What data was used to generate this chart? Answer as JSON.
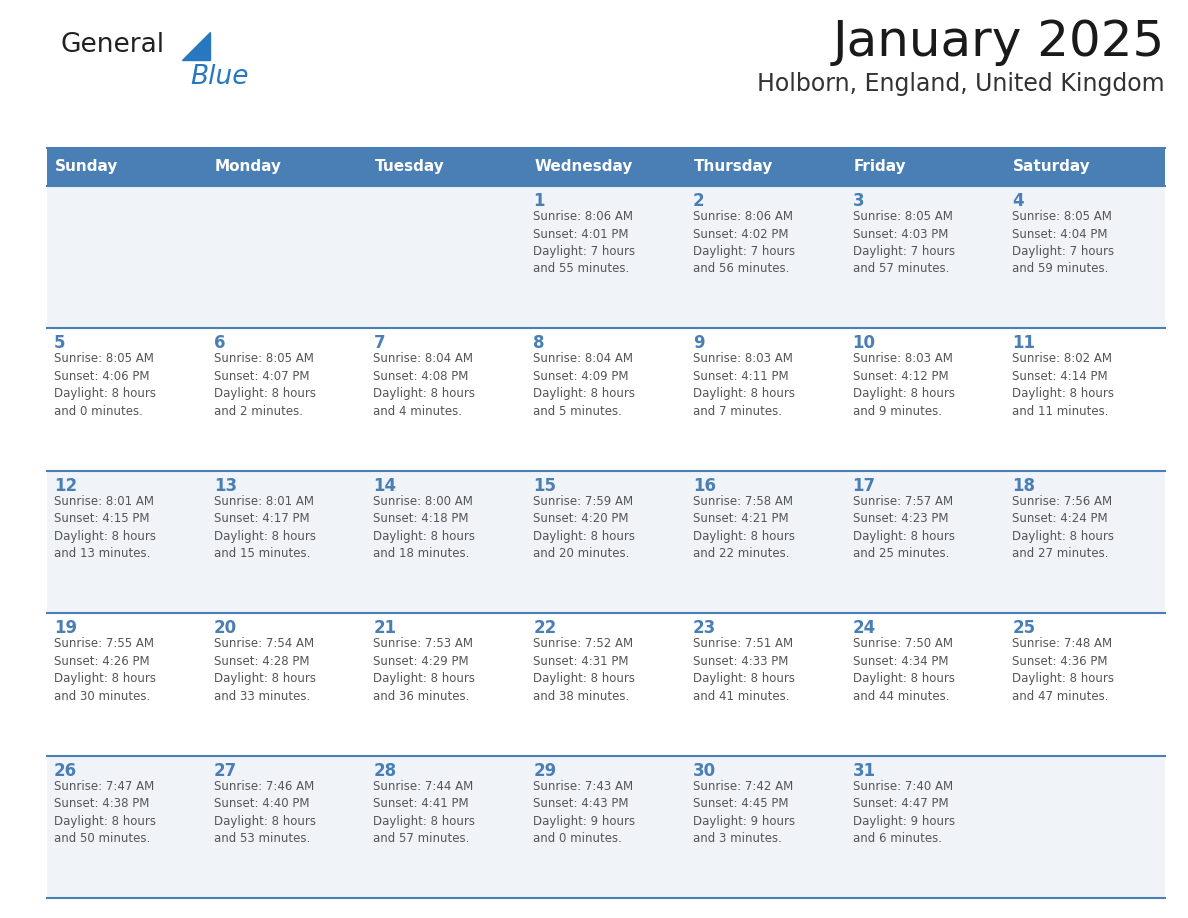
{
  "title": "January 2025",
  "subtitle": "Holborn, England, United Kingdom",
  "header_color": "#4a7fb5",
  "header_text_color": "#ffffff",
  "cell_bg_light": "#f0f4f8",
  "cell_bg_white": "#ffffff",
  "day_headers": [
    "Sunday",
    "Monday",
    "Tuesday",
    "Wednesday",
    "Thursday",
    "Friday",
    "Saturday"
  ],
  "grid_line_color": "#4a7fb5",
  "day_number_color": "#4a7fb5",
  "cell_text_color": "#555555",
  "logo_general_color": "#222222",
  "logo_blue_color": "#2878c0",
  "logo_triangle_color": "#2878c0",
  "weeks": [
    [
      {
        "day": null,
        "info": null
      },
      {
        "day": null,
        "info": null
      },
      {
        "day": null,
        "info": null
      },
      {
        "day": 1,
        "info": "Sunrise: 8:06 AM\nSunset: 4:01 PM\nDaylight: 7 hours\nand 55 minutes."
      },
      {
        "day": 2,
        "info": "Sunrise: 8:06 AM\nSunset: 4:02 PM\nDaylight: 7 hours\nand 56 minutes."
      },
      {
        "day": 3,
        "info": "Sunrise: 8:05 AM\nSunset: 4:03 PM\nDaylight: 7 hours\nand 57 minutes."
      },
      {
        "day": 4,
        "info": "Sunrise: 8:05 AM\nSunset: 4:04 PM\nDaylight: 7 hours\nand 59 minutes."
      }
    ],
    [
      {
        "day": 5,
        "info": "Sunrise: 8:05 AM\nSunset: 4:06 PM\nDaylight: 8 hours\nand 0 minutes."
      },
      {
        "day": 6,
        "info": "Sunrise: 8:05 AM\nSunset: 4:07 PM\nDaylight: 8 hours\nand 2 minutes."
      },
      {
        "day": 7,
        "info": "Sunrise: 8:04 AM\nSunset: 4:08 PM\nDaylight: 8 hours\nand 4 minutes."
      },
      {
        "day": 8,
        "info": "Sunrise: 8:04 AM\nSunset: 4:09 PM\nDaylight: 8 hours\nand 5 minutes."
      },
      {
        "day": 9,
        "info": "Sunrise: 8:03 AM\nSunset: 4:11 PM\nDaylight: 8 hours\nand 7 minutes."
      },
      {
        "day": 10,
        "info": "Sunrise: 8:03 AM\nSunset: 4:12 PM\nDaylight: 8 hours\nand 9 minutes."
      },
      {
        "day": 11,
        "info": "Sunrise: 8:02 AM\nSunset: 4:14 PM\nDaylight: 8 hours\nand 11 minutes."
      }
    ],
    [
      {
        "day": 12,
        "info": "Sunrise: 8:01 AM\nSunset: 4:15 PM\nDaylight: 8 hours\nand 13 minutes."
      },
      {
        "day": 13,
        "info": "Sunrise: 8:01 AM\nSunset: 4:17 PM\nDaylight: 8 hours\nand 15 minutes."
      },
      {
        "day": 14,
        "info": "Sunrise: 8:00 AM\nSunset: 4:18 PM\nDaylight: 8 hours\nand 18 minutes."
      },
      {
        "day": 15,
        "info": "Sunrise: 7:59 AM\nSunset: 4:20 PM\nDaylight: 8 hours\nand 20 minutes."
      },
      {
        "day": 16,
        "info": "Sunrise: 7:58 AM\nSunset: 4:21 PM\nDaylight: 8 hours\nand 22 minutes."
      },
      {
        "day": 17,
        "info": "Sunrise: 7:57 AM\nSunset: 4:23 PM\nDaylight: 8 hours\nand 25 minutes."
      },
      {
        "day": 18,
        "info": "Sunrise: 7:56 AM\nSunset: 4:24 PM\nDaylight: 8 hours\nand 27 minutes."
      }
    ],
    [
      {
        "day": 19,
        "info": "Sunrise: 7:55 AM\nSunset: 4:26 PM\nDaylight: 8 hours\nand 30 minutes."
      },
      {
        "day": 20,
        "info": "Sunrise: 7:54 AM\nSunset: 4:28 PM\nDaylight: 8 hours\nand 33 minutes."
      },
      {
        "day": 21,
        "info": "Sunrise: 7:53 AM\nSunset: 4:29 PM\nDaylight: 8 hours\nand 36 minutes."
      },
      {
        "day": 22,
        "info": "Sunrise: 7:52 AM\nSunset: 4:31 PM\nDaylight: 8 hours\nand 38 minutes."
      },
      {
        "day": 23,
        "info": "Sunrise: 7:51 AM\nSunset: 4:33 PM\nDaylight: 8 hours\nand 41 minutes."
      },
      {
        "day": 24,
        "info": "Sunrise: 7:50 AM\nSunset: 4:34 PM\nDaylight: 8 hours\nand 44 minutes."
      },
      {
        "day": 25,
        "info": "Sunrise: 7:48 AM\nSunset: 4:36 PM\nDaylight: 8 hours\nand 47 minutes."
      }
    ],
    [
      {
        "day": 26,
        "info": "Sunrise: 7:47 AM\nSunset: 4:38 PM\nDaylight: 8 hours\nand 50 minutes."
      },
      {
        "day": 27,
        "info": "Sunrise: 7:46 AM\nSunset: 4:40 PM\nDaylight: 8 hours\nand 53 minutes."
      },
      {
        "day": 28,
        "info": "Sunrise: 7:44 AM\nSunset: 4:41 PM\nDaylight: 8 hours\nand 57 minutes."
      },
      {
        "day": 29,
        "info": "Sunrise: 7:43 AM\nSunset: 4:43 PM\nDaylight: 9 hours\nand 0 minutes."
      },
      {
        "day": 30,
        "info": "Sunrise: 7:42 AM\nSunset: 4:45 PM\nDaylight: 9 hours\nand 3 minutes."
      },
      {
        "day": 31,
        "info": "Sunrise: 7:40 AM\nSunset: 4:47 PM\nDaylight: 9 hours\nand 6 minutes."
      },
      {
        "day": null,
        "info": null
      }
    ]
  ]
}
